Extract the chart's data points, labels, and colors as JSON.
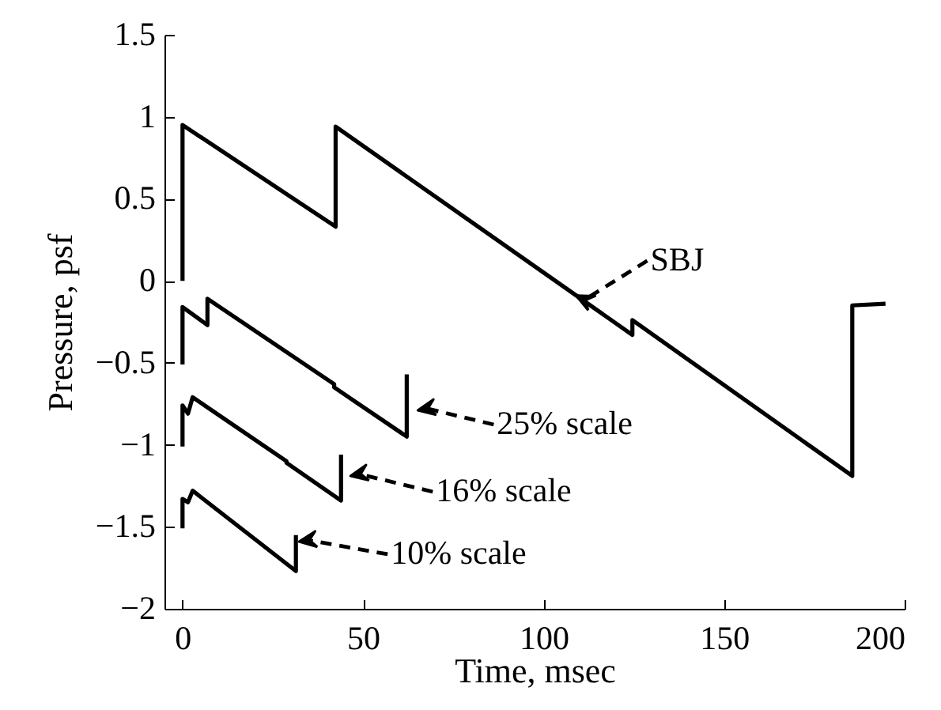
{
  "chart_data": {
    "type": "line",
    "xlabel": "Time, msec",
    "ylabel": "Pressure, psf",
    "xlim": [
      -5,
      200
    ],
    "ylim": [
      -2,
      1.5
    ],
    "xticks": [
      0,
      50,
      100,
      150,
      200
    ],
    "yticks": [
      -2,
      -1.5,
      -1,
      -0.5,
      0,
      0.5,
      1,
      1.5
    ],
    "grid": false,
    "legend": false,
    "line_style": "solid",
    "series": [
      {
        "color": "#000000",
        "x": [
          0,
          0,
          42.4,
          42.4,
          124.6,
          124.6,
          185.5,
          185.5,
          194.7
        ],
        "values": [
          0,
          0.95,
          0.33,
          0.94,
          -0.33,
          -0.24,
          -1.19,
          -0.15,
          -0.14
        ]
      },
      {
        "color": "#000000",
        "x": [
          0,
          0,
          6.9,
          6.9,
          42,
          42,
          62.1,
          62.1
        ],
        "values": [
          -0.51,
          -0.16,
          -0.27,
          -0.11,
          -0.63,
          -0.65,
          -0.95,
          -0.57
        ]
      },
      {
        "color": "#000000",
        "x": [
          0,
          0,
          1.5,
          2.8,
          28.8,
          28.8,
          43.9,
          43.9
        ],
        "values": [
          -1.01,
          -0.76,
          -0.81,
          -0.71,
          -1.1,
          -1.11,
          -1.34,
          -1.06
        ]
      },
      {
        "color": "#000000",
        "x": [
          0,
          0,
          1.5,
          2.8,
          31.4,
          31.4
        ],
        "values": [
          -1.51,
          -1.33,
          -1.35,
          -1.28,
          -1.77,
          -1.55
        ]
      }
    ],
    "annotations": [
      {
        "text": "SBJ",
        "x": 109,
        "y": -0.09
      },
      {
        "text": "25% scale",
        "x": 62.1,
        "y": -0.79
      },
      {
        "text": "16% scale",
        "x": 43.9,
        "y": -1.19
      },
      {
        "text": "10% scale",
        "x": 31.4,
        "y": -1.59
      }
    ]
  }
}
